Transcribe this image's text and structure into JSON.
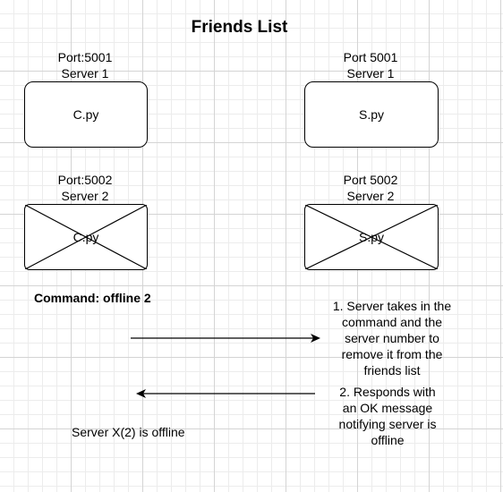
{
  "diagram": {
    "title": "Friends List",
    "client_top": {
      "port_label": "Port:5001",
      "server_label": "Server 1",
      "box_label": "C.py"
    },
    "server_top": {
      "port_label": "Port 5001",
      "server_label": "Server 1",
      "box_label": "S.py"
    },
    "client_bottom": {
      "port_label": "Port:5002",
      "server_label": "Server 2",
      "box_label": "C.py"
    },
    "server_bottom": {
      "port_label": "Port 5002",
      "server_label": "Server 2",
      "box_label": "S.py"
    },
    "command": "Command: offline 2",
    "step1": {
      "line1": "1. Server takes in the",
      "line2": "command and the",
      "line3": "server number to",
      "line4": "remove it from the",
      "line5": "friends list"
    },
    "step2": {
      "line1": "2. Responds with",
      "line2": "an OK message",
      "line3": "notifying server is",
      "line4": "offline"
    },
    "result": "Server X(2) is offline",
    "colors": {
      "line": "#000000",
      "grid_major": "#d4d4d4",
      "grid_minor": "#ececec"
    }
  }
}
